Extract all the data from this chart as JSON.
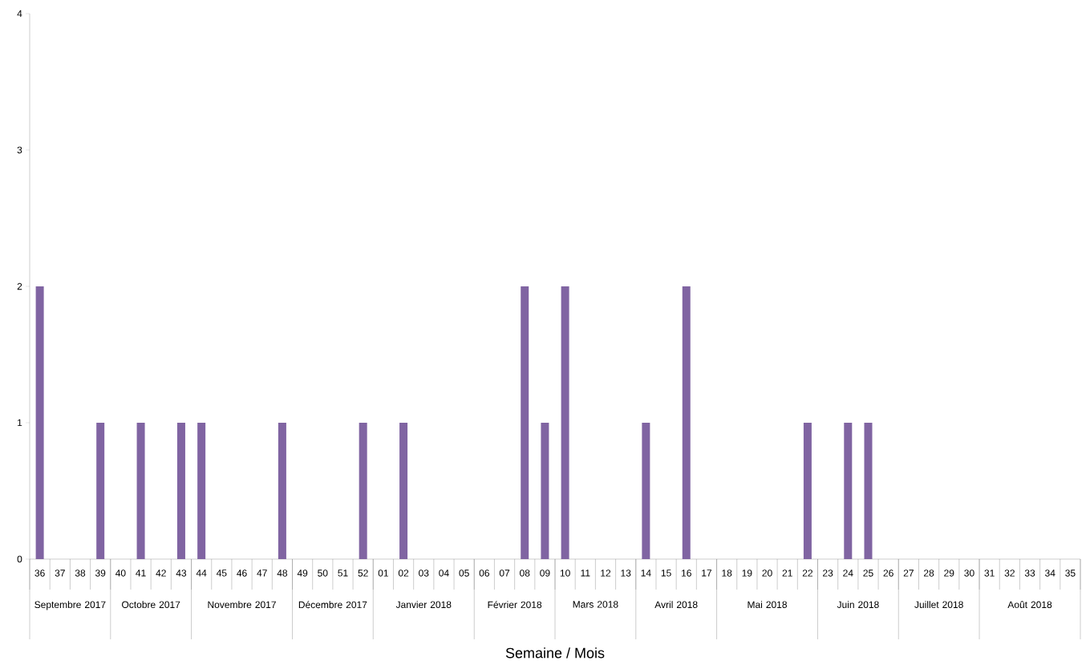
{
  "chart_data": {
    "type": "bar",
    "xlabel": "Semaine /  Mois",
    "categories": [
      "36",
      "37",
      "38",
      "39",
      "40",
      "41",
      "42",
      "43",
      "44",
      "45",
      "46",
      "47",
      "48",
      "49",
      "50",
      "51",
      "52",
      "01",
      "02",
      "03",
      "04",
      "05",
      "06",
      "07",
      "08",
      "09",
      "10",
      "11",
      "12",
      "13",
      "14",
      "15",
      "16",
      "17",
      "18",
      "19",
      "20",
      "21",
      "22",
      "23",
      "24",
      "25",
      "26",
      "27",
      "28",
      "29",
      "30",
      "31",
      "32",
      "33",
      "34",
      "35"
    ],
    "values": [
      2,
      0,
      0,
      1,
      0,
      1,
      0,
      1,
      1,
      0,
      0,
      0,
      1,
      0,
      0,
      0,
      1,
      0,
      1,
      0,
      0,
      0,
      0,
      0,
      2,
      1,
      2,
      0,
      0,
      0,
      1,
      0,
      2,
      0,
      0,
      0,
      0,
      0,
      1,
      0,
      1,
      1,
      0,
      0,
      0,
      0,
      0,
      0,
      0,
      0,
      0,
      0
    ],
    "color": "#8064a2",
    "ylim": [
      0,
      4
    ],
    "yticks": [
      0,
      1,
      2,
      3,
      4
    ],
    "annotations": [
      "Septembre 2017",
      "Octobre 2017",
      "Novembre 2017",
      "Décembre 2017",
      "Janvier 2018",
      "Février 2018",
      "Mars 2018",
      "Avril 2018",
      "Mai 2018",
      "Juin 2018",
      "Juillet 2018",
      "Août 2018"
    ]
  }
}
